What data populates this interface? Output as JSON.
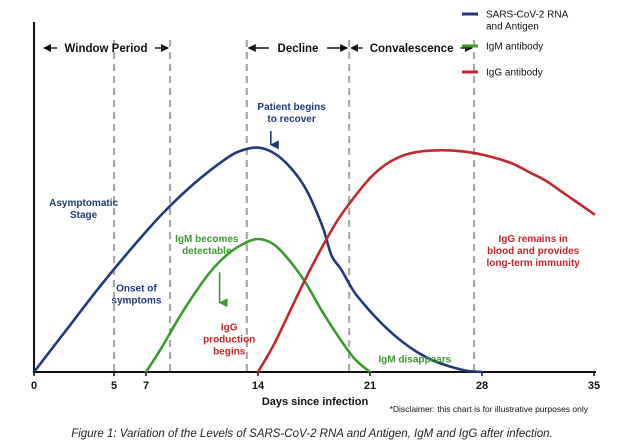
{
  "chart_data": {
    "type": "line",
    "xlabel": "Days since infection",
    "ylabel": "",
    "xlim": [
      0,
      35
    ],
    "ylim": [
      0,
      1
    ],
    "x_ticks": [
      0,
      5,
      7,
      14,
      21,
      28,
      35
    ],
    "grid": false,
    "legend_position": "top-right",
    "series": [
      {
        "name": "SARS-CoV-2 RNA and Antigen",
        "name_lines": [
          "SARS-CoV-2 RNA",
          "and Antigen"
        ],
        "color": "#1f3a7a",
        "x": [
          0,
          2,
          4,
          6,
          8,
          10,
          12,
          13,
          14,
          15,
          16,
          17,
          18,
          18.6,
          19.2,
          20,
          21,
          22,
          23,
          24,
          25,
          26,
          27,
          28
        ],
        "y": [
          0,
          0.15,
          0.3,
          0.44,
          0.57,
          0.68,
          0.77,
          0.8,
          0.81,
          0.79,
          0.74,
          0.66,
          0.53,
          0.42,
          0.37,
          0.29,
          0.22,
          0.16,
          0.11,
          0.07,
          0.04,
          0.02,
          0.005,
          0
        ]
      },
      {
        "name": "IgM antibody",
        "name_lines": [
          "IgM antibody"
        ],
        "color": "#3b9a2e",
        "x": [
          7,
          8,
          9,
          10,
          11,
          12,
          13,
          14,
          15,
          16,
          17,
          18,
          19,
          20,
          21
        ],
        "y": [
          0,
          0.09,
          0.19,
          0.28,
          0.36,
          0.42,
          0.46,
          0.48,
          0.46,
          0.4,
          0.32,
          0.22,
          0.13,
          0.05,
          0
        ]
      },
      {
        "name": "IgG antibody",
        "name_lines": [
          "IgG antibody"
        ],
        "color": "#c0282d",
        "x": [
          14,
          15,
          16,
          17,
          18,
          19,
          20,
          21,
          22,
          23,
          24,
          25,
          26,
          27,
          28,
          29,
          30,
          31,
          32,
          33,
          34,
          35
        ],
        "y": [
          0,
          0.1,
          0.22,
          0.34,
          0.45,
          0.55,
          0.63,
          0.7,
          0.75,
          0.78,
          0.795,
          0.8,
          0.8,
          0.795,
          0.785,
          0.77,
          0.75,
          0.72,
          0.69,
          0.65,
          0.61,
          0.57
        ]
      }
    ],
    "dashed_lines_x": [
      5,
      8.5,
      13.3,
      19.7,
      27.5
    ],
    "phases": [
      {
        "label": "Window Period",
        "from": 0.5,
        "to": 8.5
      },
      {
        "label": "Decline",
        "from": 13.3,
        "to": 19.7
      },
      {
        "label": "Convalescence",
        "from": 19.7,
        "to": 27.5
      }
    ],
    "annotations": [
      {
        "lines": [
          "Patient begins",
          "to recover"
        ],
        "color": "#1f3a7a",
        "x": 16.1,
        "y": 0.945
      },
      {
        "lines": [
          "Asymptomatic",
          "Stage"
        ],
        "color": "#1f3a7a",
        "x": 3.1,
        "y": 0.6
      },
      {
        "lines": [
          "Onset of",
          "symptoms"
        ],
        "color": "#1f3a7a",
        "x": 6.4,
        "y": 0.29
      },
      {
        "lines": [
          "IgM becomes",
          "detectable"
        ],
        "color": "#3b9a2e",
        "x": 10.8,
        "y": 0.47
      },
      {
        "lines": [
          "IgG",
          "production",
          "begins"
        ],
        "color": "#c0282d",
        "x": 12.2,
        "y": 0.15
      },
      {
        "lines": [
          "IgM disappears"
        ],
        "color": "#3b9a2e",
        "x": 23.8,
        "y": 0.035
      },
      {
        "lines": [
          "IgG remains in",
          "blood and provides",
          "long-term immunity"
        ],
        "color": "#c0282d",
        "x": 31.2,
        "y": 0.47
      }
    ],
    "arrows": [
      {
        "color": "#1f3a7a",
        "from": [
          14.8,
          0.87
        ],
        "to": [
          14.8,
          0.82
        ]
      },
      {
        "color": "#3b9a2e",
        "from": [
          11.6,
          0.36
        ],
        "to": [
          11.6,
          0.25
        ]
      }
    ],
    "disclaimer": "*Disclaimer: this chart is for illustrative purposes only",
    "caption": "Figure 1: Variation of the Levels of SARS-CoV-2 RNA and Antigen, IgM and IgG after infection."
  }
}
